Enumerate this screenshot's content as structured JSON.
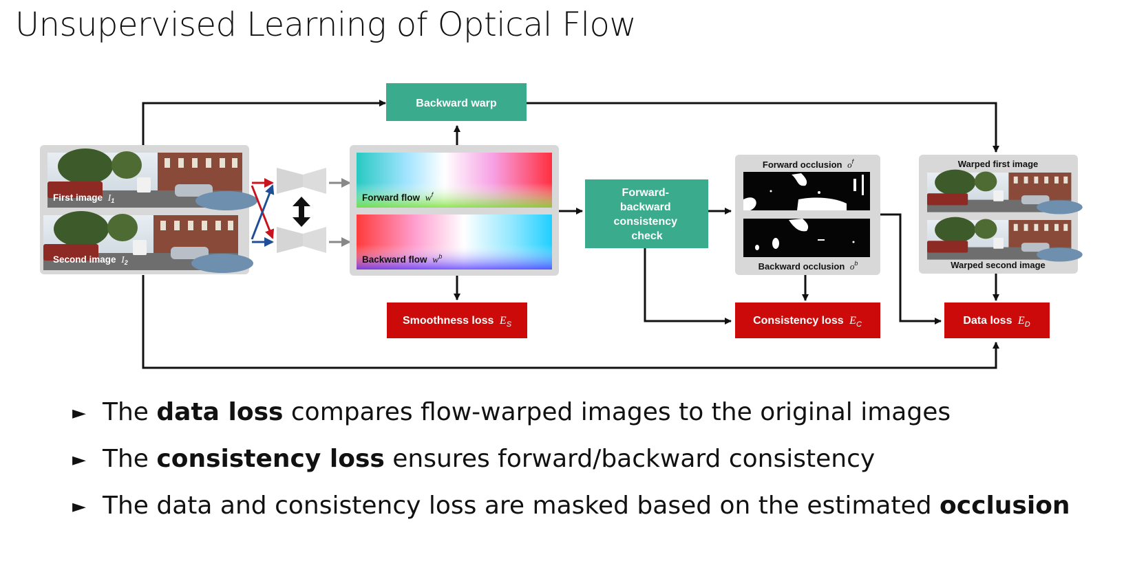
{
  "slide": {
    "title": "Unsupervised Learning of Optical Flow"
  },
  "diagram": {
    "backward_warp": "Backward warp",
    "first_image": "First image",
    "first_image_sym": "I",
    "first_image_sub": "1",
    "second_image": "Second image",
    "second_image_sym": "I",
    "second_image_sub": "2",
    "forward_flow": "Forward flow",
    "forward_flow_sym": "w",
    "forward_flow_sup": "f",
    "backward_flow": "Backward flow",
    "backward_flow_sym": "w",
    "backward_flow_sup": "b",
    "fb_check": [
      "Forward-",
      "backward",
      "consistency",
      "check"
    ],
    "forward_occlusion": "Forward occlusion",
    "forward_occlusion_sym": "o",
    "forward_occlusion_sup": "f",
    "backward_occlusion": "Backward occlusion",
    "backward_occlusion_sym": "o",
    "backward_occlusion_sup": "b",
    "warped_first": "Warped first image",
    "warped_second": "Warped second image",
    "smoothness_loss": "Smoothness loss",
    "smoothness_sym": "E",
    "smoothness_sub": "S",
    "consistency_loss": "Consistency loss",
    "consistency_sym": "E",
    "consistency_sub": "C",
    "data_loss": "Data loss",
    "data_sym": "E",
    "data_sub": "D",
    "colors": {
      "teal": "#3aab8c",
      "red": "#cc0a0a",
      "panel": "#d8d8d8",
      "arrow": "#111111",
      "cross_red": "#c8141e",
      "cross_blue": "#1f4e96"
    }
  },
  "bullets": [
    {
      "pre": "The ",
      "bold": "data loss",
      "post": " compares flow-warped images to the original images"
    },
    {
      "pre": "The ",
      "bold": "consistency loss",
      "post": " ensures forward/backward consistency"
    },
    {
      "pre": "The data and consistency loss are masked based on the estimated ",
      "bold": "occlusion",
      "post": ""
    }
  ]
}
